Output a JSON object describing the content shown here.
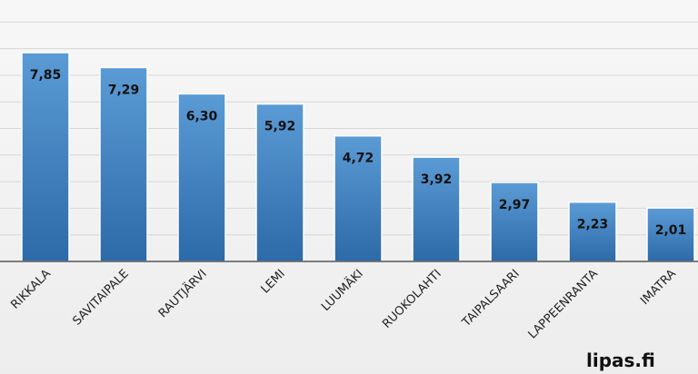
{
  "chart_data": {
    "type": "bar",
    "categories": [
      "RIKKALA",
      "SAVITAIPALE",
      "RAUTJÄRVI",
      "LEMI",
      "LUUMÄKI",
      "RUOKOLAHTI",
      "TAIPALSAARI",
      "LAPPEENRANTA",
      "IMATRA"
    ],
    "values": [
      7.85,
      7.29,
      6.3,
      5.92,
      4.72,
      3.92,
      2.97,
      2.23,
      2.01
    ],
    "value_labels": [
      "7,85",
      "7,29",
      "6,30",
      "5,92",
      "4,72",
      "3,92",
      "2,97",
      "2,23",
      "2,01"
    ],
    "title": "",
    "xlabel": "",
    "ylabel": "",
    "ylim": [
      0,
      9
    ],
    "grid": true,
    "bar_color_top": "#5b9bd5",
    "bar_color_bottom": "#2c6aa8"
  },
  "watermark": "lipas.fi"
}
